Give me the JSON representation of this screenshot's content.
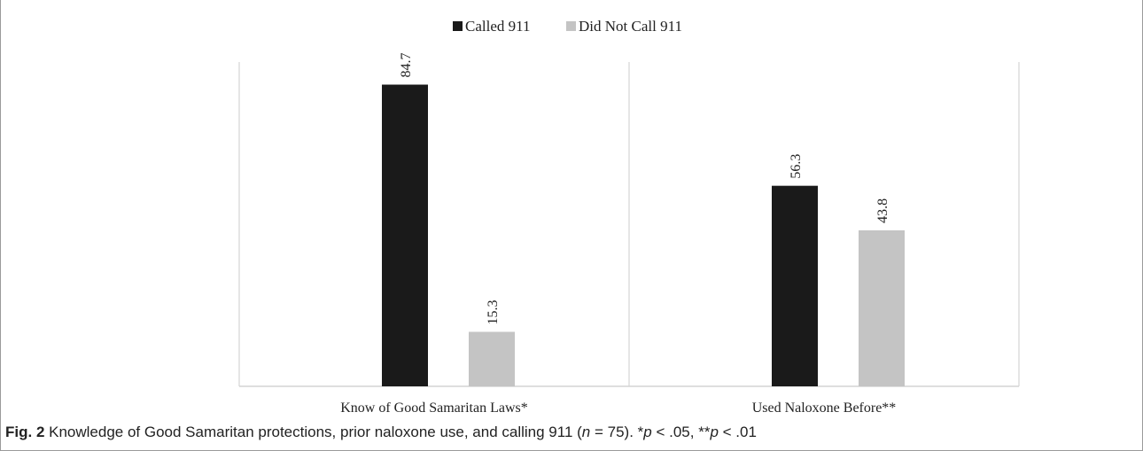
{
  "colors": {
    "called": "#1a1a1a",
    "not_called": "#c4c4c4",
    "axis": "#d4d4d4"
  },
  "chart_data": {
    "type": "bar",
    "categories": [
      "Know of Good Samaritan Laws*",
      "Used Naloxone Before**"
    ],
    "series": [
      {
        "name": "Called 911",
        "values": [
          84.7,
          56.3
        ]
      },
      {
        "name": "Did Not Call 911",
        "values": [
          15.3,
          43.8
        ]
      }
    ],
    "value_labels": [
      [
        "84.7",
        "56.3"
      ],
      [
        "15.3",
        "43.8"
      ]
    ],
    "ylim": [
      0,
      100
    ],
    "grid": false,
    "legend_position": "top-center",
    "title": "",
    "xlabel": "",
    "ylabel": ""
  },
  "caption": {
    "fig_label": "Fig. 2",
    "text_1": " Knowledge of Good Samaritan protections, prior naloxone use, and calling 911 (",
    "n_var": "n",
    "text_2": " = 75). *",
    "p_var_1": "p",
    "text_3": " < .05, **",
    "p_var_2": "p",
    "text_4": " < .01"
  }
}
